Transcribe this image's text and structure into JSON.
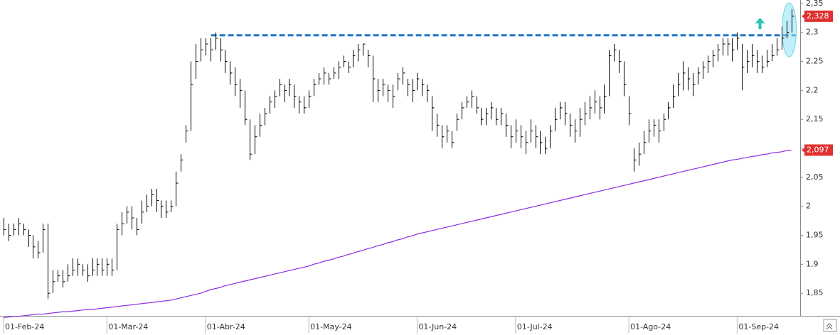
{
  "chart_data": {
    "type": "hlc",
    "categories": [
      "01-Feb-24",
      null,
      null,
      null,
      null,
      null,
      null,
      null,
      null,
      null,
      null,
      null,
      null,
      null,
      null,
      null,
      null,
      null,
      null,
      null,
      null,
      "01-Mar-24",
      null,
      null,
      null,
      null,
      null,
      null,
      null,
      null,
      null,
      null,
      null,
      null,
      null,
      null,
      null,
      null,
      null,
      null,
      null,
      "01-Abr-24",
      null,
      null,
      null,
      null,
      null,
      null,
      null,
      null,
      null,
      null,
      null,
      null,
      null,
      null,
      null,
      null,
      null,
      null,
      null,
      null,
      "01-May-24",
      null,
      null,
      null,
      null,
      null,
      null,
      null,
      null,
      null,
      null,
      null,
      null,
      null,
      null,
      null,
      null,
      null,
      null,
      null,
      null,
      null,
      "01-Jun-24",
      null,
      null,
      null,
      null,
      null,
      null,
      null,
      null,
      null,
      null,
      null,
      null,
      null,
      null,
      null,
      null,
      null,
      null,
      null,
      "01-Jul-24",
      null,
      null,
      null,
      null,
      null,
      null,
      null,
      null,
      null,
      null,
      null,
      null,
      null,
      null,
      null,
      null,
      null,
      null,
      null,
      null,
      null,
      null,
      "01-Ago-24",
      null,
      null,
      null,
      null,
      null,
      null,
      null,
      null,
      null,
      null,
      null,
      null,
      null,
      null,
      null,
      null,
      null,
      null,
      null,
      null,
      null,
      "01-Sep-24",
      null,
      null,
      null,
      null,
      null,
      null,
      null,
      null,
      null,
      null,
      null
    ],
    "high": [
      1.98,
      1.97,
      1.97,
      1.98,
      1.97,
      1.96,
      1.95,
      1.94,
      1.97,
      1.97,
      1.89,
      1.89,
      1.89,
      1.9,
      1.91,
      1.91,
      1.9,
      1.9,
      1.91,
      1.91,
      1.91,
      1.91,
      1.91,
      1.97,
      1.99,
      2.0,
      2.0,
      1.98,
      2.01,
      2.02,
      2.03,
      2.03,
      2.01,
      2.01,
      2.01,
      2.06,
      2.09,
      2.14,
      2.25,
      2.28,
      2.29,
      2.29,
      2.29,
      2.3,
      2.29,
      2.27,
      2.25,
      2.24,
      2.22,
      2.2,
      2.15,
      2.14,
      2.16,
      2.17,
      2.19,
      2.2,
      2.22,
      2.21,
      2.22,
      2.21,
      2.19,
      2.19,
      2.2,
      2.22,
      2.23,
      2.24,
      2.23,
      2.24,
      2.25,
      2.26,
      2.25,
      2.27,
      2.28,
      2.28,
      2.27,
      2.26,
      2.22,
      2.22,
      2.21,
      2.21,
      2.23,
      2.24,
      2.22,
      2.22,
      2.23,
      2.22,
      2.21,
      2.19,
      2.16,
      2.14,
      2.14,
      2.13,
      2.16,
      2.18,
      2.19,
      2.2,
      2.19,
      2.17,
      2.17,
      2.18,
      2.17,
      2.17,
      2.16,
      2.14,
      2.15,
      2.14,
      2.13,
      2.15,
      2.14,
      2.13,
      2.12,
      2.14,
      2.17,
      2.18,
      2.18,
      2.16,
      2.15,
      2.17,
      2.18,
      2.19,
      2.2,
      2.19,
      2.21,
      2.27,
      2.28,
      2.27,
      2.25,
      2.19,
      2.1,
      2.11,
      2.13,
      2.15,
      2.15,
      2.15,
      2.16,
      2.18,
      2.21,
      2.23,
      2.25,
      2.24,
      2.23,
      2.24,
      2.25,
      2.26,
      2.27,
      2.28,
      2.29,
      2.29,
      2.29,
      2.3,
      2.28,
      2.27,
      2.28,
      2.27,
      2.26,
      2.27,
      2.28,
      2.29,
      2.31,
      2.32,
      2.34
    ],
    "low": [
      1.95,
      1.94,
      1.95,
      1.95,
      1.95,
      1.93,
      1.91,
      1.91,
      1.92,
      1.84,
      1.85,
      1.87,
      1.86,
      1.87,
      1.88,
      1.88,
      1.88,
      1.87,
      1.88,
      1.88,
      1.88,
      1.88,
      1.88,
      1.89,
      1.95,
      1.97,
      1.96,
      1.95,
      1.97,
      1.99,
      2.0,
      1.99,
      1.98,
      1.98,
      1.99,
      2.0,
      2.06,
      2.11,
      2.13,
      2.22,
      2.25,
      2.26,
      2.25,
      2.27,
      2.25,
      2.23,
      2.21,
      2.19,
      2.17,
      2.14,
      2.08,
      2.09,
      2.12,
      2.14,
      2.16,
      2.17,
      2.19,
      2.18,
      2.19,
      2.17,
      2.16,
      2.16,
      2.17,
      2.19,
      2.21,
      2.21,
      2.21,
      2.22,
      2.22,
      2.24,
      2.23,
      2.24,
      2.25,
      2.26,
      2.24,
      2.18,
      2.18,
      2.19,
      2.18,
      2.17,
      2.2,
      2.21,
      2.19,
      2.18,
      2.2,
      2.19,
      2.18,
      2.13,
      2.12,
      2.1,
      2.11,
      2.1,
      2.13,
      2.15,
      2.17,
      2.17,
      2.16,
      2.14,
      2.14,
      2.15,
      2.14,
      2.14,
      2.12,
      2.1,
      2.11,
      2.1,
      2.09,
      2.11,
      2.1,
      2.09,
      2.09,
      2.1,
      2.13,
      2.15,
      2.14,
      2.12,
      2.11,
      2.12,
      2.14,
      2.15,
      2.16,
      2.15,
      2.16,
      2.19,
      2.25,
      2.23,
      2.19,
      2.14,
      2.06,
      2.07,
      2.09,
      2.11,
      2.12,
      2.11,
      2.13,
      2.15,
      2.17,
      2.19,
      2.2,
      2.2,
      2.19,
      2.21,
      2.22,
      2.23,
      2.24,
      2.25,
      2.26,
      2.26,
      2.25,
      2.27,
      2.2,
      2.23,
      2.24,
      2.23,
      2.23,
      2.24,
      2.25,
      2.26,
      2.27,
      2.29,
      2.3
    ],
    "close": [
      1.96,
      1.95,
      1.96,
      1.97,
      1.96,
      1.95,
      1.93,
      1.92,
      1.96,
      1.85,
      1.87,
      1.88,
      1.87,
      1.88,
      1.89,
      1.9,
      1.89,
      1.88,
      1.89,
      1.9,
      1.89,
      1.9,
      1.89,
      1.96,
      1.97,
      1.99,
      1.98,
      1.96,
      1.99,
      2.0,
      2.02,
      2.01,
      2.0,
      1.99,
      2.0,
      2.04,
      2.08,
      2.13,
      2.21,
      2.25,
      2.27,
      2.28,
      2.27,
      2.29,
      2.27,
      2.25,
      2.23,
      2.21,
      2.2,
      2.15,
      2.09,
      2.12,
      2.14,
      2.16,
      2.18,
      2.19,
      2.21,
      2.2,
      2.21,
      2.19,
      2.18,
      2.17,
      2.19,
      2.21,
      2.22,
      2.23,
      2.22,
      2.23,
      2.24,
      2.25,
      2.24,
      2.26,
      2.27,
      2.28,
      2.26,
      2.22,
      2.2,
      2.21,
      2.2,
      2.19,
      2.22,
      2.23,
      2.21,
      2.2,
      2.22,
      2.21,
      2.2,
      2.17,
      2.14,
      2.12,
      2.13,
      2.11,
      2.15,
      2.17,
      2.18,
      2.19,
      2.17,
      2.15,
      2.16,
      2.17,
      2.15,
      2.16,
      2.14,
      2.12,
      2.13,
      2.12,
      2.11,
      2.13,
      2.12,
      2.11,
      2.1,
      2.13,
      2.15,
      2.17,
      2.16,
      2.14,
      2.13,
      2.15,
      2.16,
      2.17,
      2.18,
      2.17,
      2.19,
      2.26,
      2.27,
      2.25,
      2.21,
      2.16,
      2.08,
      2.09,
      2.11,
      2.13,
      2.14,
      2.13,
      2.15,
      2.17,
      2.19,
      2.21,
      2.23,
      2.22,
      2.21,
      2.23,
      2.24,
      2.25,
      2.26,
      2.27,
      2.28,
      2.28,
      2.27,
      2.29,
      2.24,
      2.25,
      2.26,
      2.25,
      2.24,
      2.25,
      2.26,
      2.27,
      2.29,
      2.3,
      2.328
    ],
    "close_value_label": "2,328",
    "color": "#000000",
    "label_color": "#e03030",
    "moving_average": {
      "color": "#8a2be2",
      "value_label": "2,097",
      "values": [
        1.808,
        1.809,
        1.81,
        1.81,
        1.811,
        1.812,
        1.813,
        1.814,
        1.814,
        1.815,
        1.816,
        1.817,
        1.818,
        1.818,
        1.819,
        1.82,
        1.821,
        1.822,
        1.822,
        1.823,
        1.824,
        1.825,
        1.826,
        1.827,
        1.828,
        1.829,
        1.83,
        1.831,
        1.832,
        1.833,
        1.834,
        1.835,
        1.836,
        1.837,
        1.838,
        1.84,
        1.842,
        1.844,
        1.846,
        1.848,
        1.85,
        1.853,
        1.856,
        1.858,
        1.86,
        1.863,
        1.865,
        1.867,
        1.869,
        1.871,
        1.873,
        1.875,
        1.877,
        1.879,
        1.881,
        1.883,
        1.885,
        1.887,
        1.889,
        1.891,
        1.893,
        1.895,
        1.897,
        1.9,
        1.902,
        1.905,
        1.907,
        1.909,
        1.912,
        1.914,
        1.917,
        1.919,
        1.922,
        1.924,
        1.927,
        1.929,
        1.932,
        1.934,
        1.937,
        1.939,
        1.942,
        1.944,
        1.947,
        1.949,
        1.952,
        1.954,
        1.956,
        1.958,
        1.96,
        1.962,
        1.964,
        1.966,
        1.968,
        1.97,
        1.972,
        1.974,
        1.976,
        1.978,
        1.98,
        1.982,
        1.984,
        1.986,
        1.988,
        1.99,
        1.992,
        1.994,
        1.996,
        1.998,
        2.0,
        2.002,
        2.004,
        2.006,
        2.008,
        2.01,
        2.012,
        2.014,
        2.016,
        2.018,
        2.02,
        2.022,
        2.024,
        2.026,
        2.028,
        2.03,
        2.032,
        2.034,
        2.036,
        2.038,
        2.04,
        2.042,
        2.044,
        2.046,
        2.048,
        2.05,
        2.052,
        2.054,
        2.056,
        2.058,
        2.06,
        2.062,
        2.064,
        2.066,
        2.068,
        2.07,
        2.072,
        2.074,
        2.076,
        2.078,
        2.08,
        2.081,
        2.083,
        2.084,
        2.086,
        2.087,
        2.089,
        2.09,
        2.092,
        2.093,
        2.094,
        2.096,
        2.097
      ]
    },
    "resistance_level": 2.295,
    "resistance_color": "#1f77c8",
    "ylim": [
      1.811,
      2.356
    ],
    "yticks": [
      {
        "value": 1.85,
        "label": "1,85"
      },
      {
        "value": 1.9,
        "label": "1,9"
      },
      {
        "value": 1.95,
        "label": "1,95"
      },
      2,
      {
        "value": 2.05,
        "label": "2,05"
      },
      {
        "value": 2.1,
        "label": "2,1"
      },
      {
        "value": 2.15,
        "label": "2,15"
      },
      {
        "value": 2.2,
        "label": "2,2"
      },
      {
        "value": 2.25,
        "label": "2,25"
      },
      {
        "value": 2.3,
        "label": "2,3"
      },
      {
        "value": 2.35,
        "label": "2,35"
      }
    ],
    "grid": false
  }
}
